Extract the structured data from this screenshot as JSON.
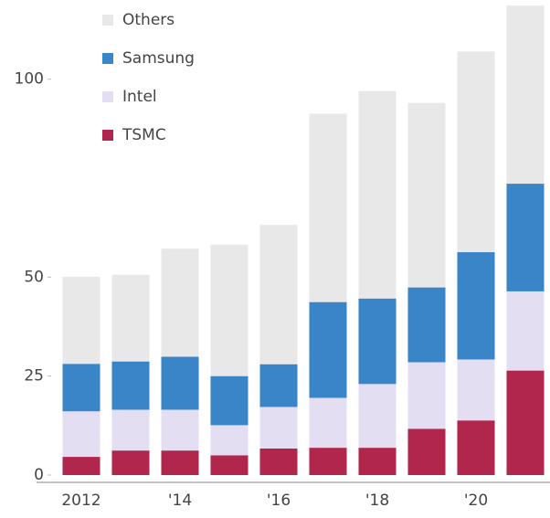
{
  "chart_data": {
    "type": "stacked-bar",
    "categories": [
      "2012",
      null,
      "'14",
      null,
      "'16",
      null,
      "'18",
      null,
      "'20",
      null
    ],
    "series": [
      {
        "name": "TSMC",
        "color": "#b0264c",
        "values": [
          4.6,
          6.2,
          6.2,
          5,
          6.7,
          6.9,
          6.9,
          11.7,
          13.8,
          26.4
        ]
      },
      {
        "name": "Intel",
        "color": "#e4def3",
        "values": [
          11.5,
          10.3,
          10.3,
          7.6,
          10.5,
          12.6,
          16.1,
          16.8,
          15.4,
          20
        ]
      },
      {
        "name": "Samsung",
        "color": "#3a85c8",
        "values": [
          12,
          12.2,
          13.4,
          12.4,
          10.8,
          24.2,
          21.6,
          18.9,
          27.1,
          27.2
        ]
      },
      {
        "name": "Others",
        "color": "#e8e8e8",
        "values": [
          22,
          21.9,
          27.3,
          33.2,
          35.2,
          47.6,
          52.4,
          46.6,
          50.7,
          45
        ]
      }
    ],
    "ylim": [
      0,
      120
    ],
    "yticks": [
      0,
      25,
      50,
      100
    ]
  }
}
